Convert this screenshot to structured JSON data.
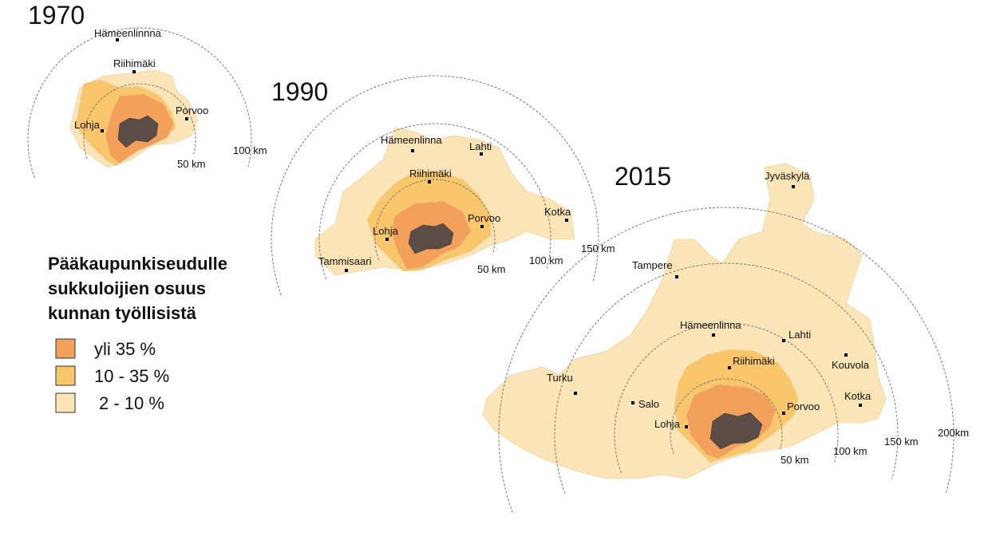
{
  "maps": [
    {
      "year": "1970",
      "cities": [
        "Hämeenlinnna",
        "Riihimäki",
        "Porvoo",
        "Lohja"
      ],
      "rings": [
        "50 km",
        "100 km"
      ]
    },
    {
      "year": "1990",
      "cities": [
        "Hämeenlinna",
        "Lahti",
        "Riihimäki",
        "Kotka",
        "Porvoo",
        "Lohja",
        "Tammisaari"
      ],
      "rings": [
        "50 km",
        "100 km",
        "150 km"
      ]
    },
    {
      "year": "2015",
      "cities": [
        "Jyväskylä",
        "Tampere",
        "Hämeenlinna",
        "Lahti",
        "Riihimäki",
        "Kouvola",
        "Turku",
        "Salo",
        "Porvoo",
        "Kotka",
        "Lohja"
      ],
      "rings": [
        "50 km",
        "100 km",
        "150 km",
        "200km"
      ]
    }
  ],
  "legend": {
    "title": [
      "Pääkaupunkiseudulle",
      "sukkuloijien osuus",
      "kunnan työllisistä"
    ],
    "items": [
      "yli 35 %",
      "10 - 35 %",
      "2 - 10 %"
    ]
  }
}
